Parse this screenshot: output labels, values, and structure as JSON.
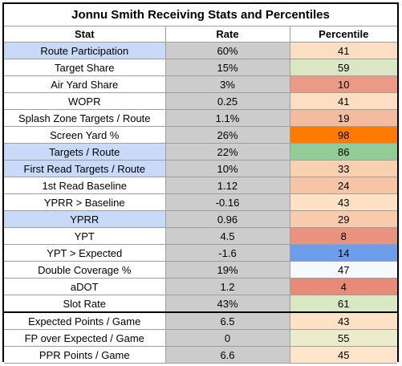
{
  "title": "Jonnu Smith Receiving Stats and Percentiles",
  "headers": {
    "stat": "Stat",
    "rate": "Rate",
    "percentile": "Percentile"
  },
  "rows": [
    {
      "stat": "Route Participation",
      "rate": "60%",
      "percentile": "41",
      "highlight": true,
      "pct_color": "#fcdfc2"
    },
    {
      "stat": "Target Share",
      "rate": "15%",
      "percentile": "59",
      "highlight": false,
      "pct_color": "#dbe6c4"
    },
    {
      "stat": "Air Yard Share",
      "rate": "3%",
      "percentile": "10",
      "highlight": false,
      "pct_color": "#eb9a85"
    },
    {
      "stat": "WOPR",
      "rate": "0.25",
      "percentile": "41",
      "highlight": false,
      "pct_color": "#fcdfc2"
    },
    {
      "stat": "Splash Zone Targets / Route",
      "rate": "1.1%",
      "percentile": "19",
      "highlight": false,
      "pct_color": "#f4bc9e"
    },
    {
      "stat": "Screen Yard %",
      "rate": "26%",
      "percentile": "98",
      "highlight": false,
      "pct_color": "#ff7a00"
    },
    {
      "stat": "Targets / Route",
      "rate": "22%",
      "percentile": "86",
      "highlight": true,
      "pct_color": "#92cc97"
    },
    {
      "stat": "First Read Targets / Route",
      "rate": "10%",
      "percentile": "33",
      "highlight": true,
      "pct_color": "#f9d1b1"
    },
    {
      "stat": "1st Read Baseline",
      "rate": "1.12",
      "percentile": "24",
      "highlight": false,
      "pct_color": "#f6c5a6"
    },
    {
      "stat": "YPRR > Baseline",
      "rate": "-0.16",
      "percentile": "43",
      "highlight": false,
      "pct_color": "#fde2c6"
    },
    {
      "stat": "YPRR",
      "rate": "0.96",
      "percentile": "29",
      "highlight": true,
      "pct_color": "#f8cbad"
    },
    {
      "stat": "YPT",
      "rate": "4.5",
      "percentile": "8",
      "highlight": false,
      "pct_color": "#ea9280"
    },
    {
      "stat": "YPT > Expected",
      "rate": "-1.6",
      "percentile": "14",
      "highlight": false,
      "pct_color": "#6d9eeb"
    },
    {
      "stat": "Double Coverage %",
      "rate": "19%",
      "percentile": "47",
      "highlight": false,
      "pct_color": "#f5f8fd"
    },
    {
      "stat": "aDOT",
      "rate": "1.2",
      "percentile": "4",
      "highlight": false,
      "pct_color": "#e88a78"
    },
    {
      "stat": "Slot Rate",
      "rate": "43%",
      "percentile": "61",
      "highlight": false,
      "pct_color": "#d9e8c3"
    },
    {
      "stat": "Expected Points / Game",
      "rate": "6.5",
      "percentile": "43",
      "highlight": false,
      "pct_color": "#fde2c6"
    },
    {
      "stat": "FP over Expected / Game",
      "rate": "0",
      "percentile": "55",
      "highlight": false,
      "pct_color": "#ececcb"
    },
    {
      "stat": "PPR Points / Game",
      "rate": "6.6",
      "percentile": "45",
      "highlight": false,
      "pct_color": "#fce5ca"
    }
  ]
}
